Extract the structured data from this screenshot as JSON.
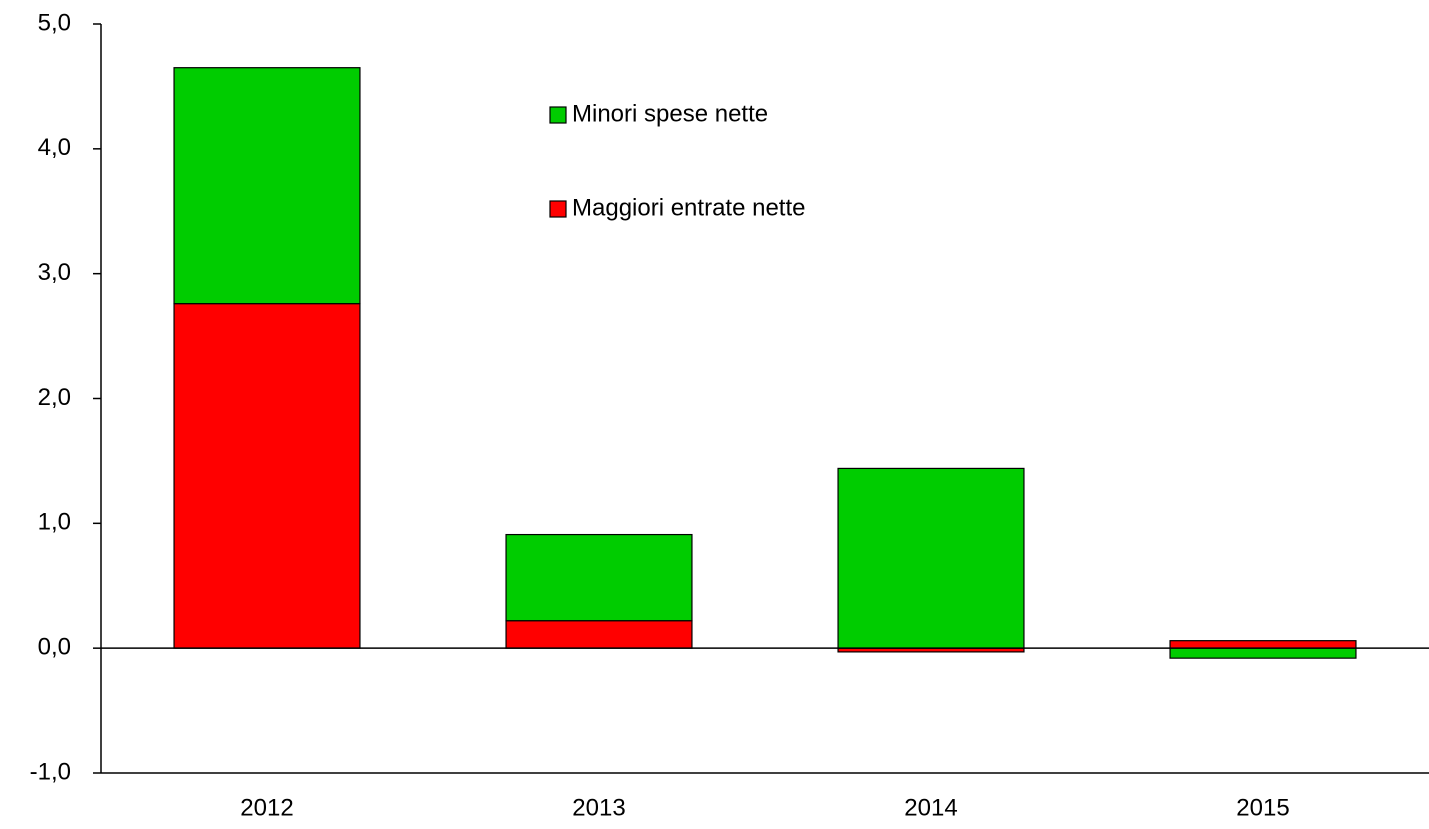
{
  "chart_data": {
    "type": "stacked-bar",
    "categories": [
      "2012",
      "2013",
      "2014",
      "2015"
    ],
    "series": [
      {
        "name": "Maggiori entrate nette",
        "color": "#ff0000",
        "values": [
          2.76,
          0.22,
          -0.03,
          0.06
        ]
      },
      {
        "name": "Minori spese nette",
        "color": "#00cc00",
        "values": [
          1.89,
          0.69,
          1.44,
          -0.08
        ]
      }
    ],
    "ylim": [
      -1,
      5
    ],
    "yticks": [
      {
        "value": -1,
        "label": "-1,0"
      },
      {
        "value": 0,
        "label": "0,0"
      },
      {
        "value": 1,
        "label": "1,0"
      },
      {
        "value": 2,
        "label": "2,0"
      },
      {
        "value": 3,
        "label": "3,0"
      },
      {
        "value": 4,
        "label": "4,0"
      },
      {
        "value": 5,
        "label": "5,0"
      }
    ],
    "grid": false
  }
}
